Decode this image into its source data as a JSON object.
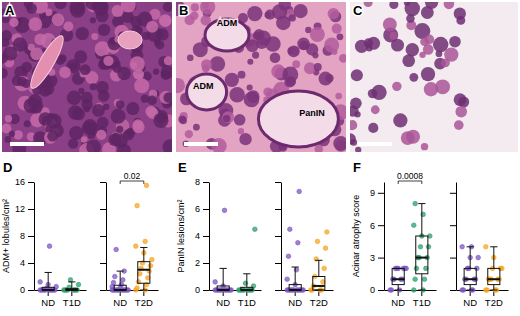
{
  "images": [
    {
      "label": "A"
    },
    {
      "label": "B",
      "annotations": [
        "ADM",
        "ADM",
        "PanIN"
      ]
    },
    {
      "label": "C"
    }
  ],
  "chart_data": [
    {
      "type": "box",
      "title": "D",
      "y_label": "ADM+ lobules/cm²",
      "categories": [
        "ND",
        "T1D"
      ],
      "ylim": [
        0,
        16
      ],
      "yticks": [
        0,
        4,
        8,
        12,
        16
      ],
      "series": [
        {
          "color": "#7e57c2",
          "points": [
            0,
            0,
            0,
            0,
            0,
            0,
            0,
            0,
            0,
            0,
            0.3,
            0.5,
            0.8,
            1.2,
            6.5
          ],
          "box": {
            "whisker_low": 0,
            "q1": 0,
            "median": 0,
            "q3": 0.4,
            "whisker_high": 2.6
          }
        },
        {
          "color": "#2e9e6e",
          "points": [
            0,
            0,
            0,
            0,
            0,
            0,
            0,
            0,
            0.4,
            0.8,
            1.5
          ],
          "box": {
            "whisker_low": 0,
            "q1": 0,
            "median": 0,
            "q3": 0.2,
            "whisker_high": 1.2
          }
        }
      ]
    },
    {
      "type": "box",
      "categories": [
        "ND",
        "T2D"
      ],
      "tick_labels": "x",
      "ylim": [
        0,
        16
      ],
      "yticks": [
        0,
        4,
        8,
        12,
        16
      ],
      "annotations": [
        "0.02"
      ],
      "series": [
        {
          "color": "#7e57c2",
          "points": [
            0,
            0,
            0,
            0,
            0,
            0,
            0,
            0,
            0,
            0,
            0,
            0,
            0.3,
            0.5,
            0.8,
            1.1,
            1.5,
            2.0,
            2.8,
            6.0
          ],
          "box": {
            "whisker_low": 0,
            "q1": 0,
            "median": 0,
            "q3": 0.7,
            "whisker_high": 2.8
          }
        },
        {
          "color": "#f5a623",
          "points": [
            0,
            0,
            0.3,
            0.8,
            1.2,
            1.8,
            2.4,
            2.8,
            3.2,
            3.6,
            4.0,
            4.5,
            5.5,
            6.5,
            7.2,
            12.5,
            15.5
          ],
          "box": {
            "whisker_low": 0,
            "q1": 1.0,
            "median": 3.0,
            "q3": 4.2,
            "whisker_high": 6.3
          }
        }
      ]
    },
    {
      "type": "box",
      "title": "E",
      "y_label": "PanIN lesions/cm²",
      "categories": [
        "ND",
        "T1D"
      ],
      "ylim": [
        0,
        8
      ],
      "yticks": [
        0,
        2,
        4,
        6,
        8
      ],
      "series": [
        {
          "color": "#7e57c2",
          "points": [
            0,
            0,
            0,
            0,
            0,
            0,
            0,
            0,
            0,
            0,
            0,
            0,
            0.3,
            0.6,
            5.9
          ],
          "box": {
            "whisker_low": 0,
            "q1": 0,
            "median": 0,
            "q3": 0.3,
            "whisker_high": 1.6
          }
        },
        {
          "color": "#2e9e6e",
          "points": [
            0,
            0,
            0,
            0,
            0,
            0,
            0,
            0,
            0,
            0.3,
            0.5,
            4.5
          ],
          "box": {
            "whisker_low": 0,
            "q1": 0,
            "median": 0,
            "q3": 0.2,
            "whisker_high": 1.2
          }
        }
      ]
    },
    {
      "type": "box",
      "categories": [
        "ND",
        "T2D"
      ],
      "tick_labels": "x",
      "ylim": [
        0,
        8
      ],
      "yticks": [
        0,
        2,
        4,
        6,
        8
      ],
      "series": [
        {
          "color": "#7e57c2",
          "points": [
            0,
            0,
            0,
            0,
            0,
            0,
            0,
            0,
            0,
            0,
            0,
            0,
            0.4,
            0.8,
            1.5,
            2.5,
            3.5,
            4.5,
            7.3
          ],
          "box": {
            "whisker_low": 0,
            "q1": 0,
            "median": 0,
            "q3": 0.4,
            "whisker_high": 1.7
          }
        },
        {
          "color": "#f5a623",
          "points": [
            0,
            0,
            0,
            0,
            0.3,
            0.6,
            1.0,
            1.6,
            2.3,
            3.1,
            3.6,
            4.3
          ],
          "box": {
            "whisker_low": 0,
            "q1": 0,
            "median": 0.3,
            "q3": 1.0,
            "whisker_high": 2.2
          }
        }
      ]
    },
    {
      "type": "box",
      "title": "F",
      "y_label": "Acinar atrophy score",
      "categories": [
        "ND",
        "T1D"
      ],
      "ylim": [
        0,
        10
      ],
      "yticks": [
        0,
        3,
        6,
        9
      ],
      "annotations": [
        "0.0008"
      ],
      "series": [
        {
          "color": "#7e57c2",
          "points": [
            0,
            0,
            0,
            1,
            1,
            1,
            1,
            2,
            2,
            2,
            2,
            2,
            2
          ],
          "box": {
            "whisker_low": 0,
            "q1": 0.5,
            "median": 1,
            "q3": 2,
            "whisker_high": 2
          }
        },
        {
          "color": "#2e9e6e",
          "points": [
            0,
            0,
            1,
            1,
            2,
            2,
            3,
            3,
            3,
            4,
            4,
            5,
            5,
            6,
            7,
            8
          ],
          "box": {
            "whisker_low": 0,
            "q1": 1.5,
            "median": 3,
            "q3": 5,
            "whisker_high": 8
          }
        }
      ]
    },
    {
      "type": "box",
      "categories": [
        "ND",
        "T2D"
      ],
      "tick_labels": "x",
      "ylim": [
        0,
        10
      ],
      "yticks": [
        0,
        3,
        6,
        9
      ],
      "series": [
        {
          "color": "#7e57c2",
          "points": [
            0,
            0,
            0,
            0,
            1,
            1,
            1,
            1,
            2,
            2,
            2,
            3,
            3,
            4,
            4
          ],
          "box": {
            "whisker_low": 0,
            "q1": 0.5,
            "median": 1,
            "q3": 2,
            "whisker_high": 4
          }
        },
        {
          "color": "#f5a623",
          "points": [
            0,
            0,
            0,
            0,
            1,
            1,
            1,
            1,
            1,
            2,
            2,
            2,
            3,
            4
          ],
          "box": {
            "whisker_low": 0,
            "q1": 0.5,
            "median": 1,
            "q3": 2,
            "whisker_high": 4
          }
        }
      ]
    }
  ]
}
